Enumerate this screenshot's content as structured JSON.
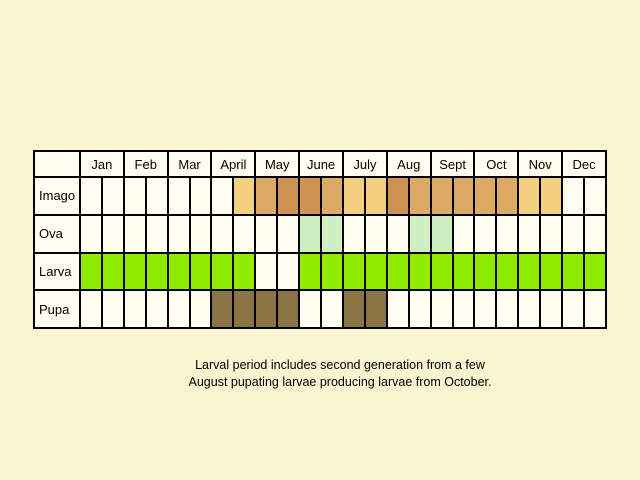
{
  "months": [
    "Jan",
    "Feb",
    "Mar",
    "April",
    "May",
    "June",
    "July",
    "Aug",
    "Sept",
    "Oct",
    "Nov",
    "Dec"
  ],
  "colors": {
    "empty": "#fffef0",
    "imago_light": "#f4cf80",
    "imago_mid": "#dcaa62",
    "imago_dark": "#cc9450",
    "ova": "#cfeec1",
    "larva": "#8fec00",
    "pupa": "#8b7444"
  },
  "rows": [
    {
      "label": "Imago",
      "cells": [
        "empty",
        "empty",
        "empty",
        "empty",
        "empty",
        "empty",
        "empty",
        "imago_light",
        "imago_mid",
        "imago_dark",
        "imago_dark",
        "imago_mid",
        "imago_light",
        "imago_light",
        "imago_dark",
        "imago_mid",
        "imago_mid",
        "imago_mid",
        "imago_mid",
        "imago_mid",
        "imago_light",
        "imago_light",
        "empty",
        "empty"
      ]
    },
    {
      "label": "Ova",
      "cells": [
        "empty",
        "empty",
        "empty",
        "empty",
        "empty",
        "empty",
        "empty",
        "empty",
        "empty",
        "empty",
        "ova",
        "ova",
        "empty",
        "empty",
        "empty",
        "ova",
        "ova",
        "empty",
        "empty",
        "empty",
        "empty",
        "empty",
        "empty",
        "empty"
      ]
    },
    {
      "label": "Larva",
      "cells": [
        "larva",
        "larva",
        "larva",
        "larva",
        "larva",
        "larva",
        "larva",
        "larva",
        "empty",
        "empty",
        "larva",
        "larva",
        "larva",
        "larva",
        "larva",
        "larva",
        "larva",
        "larva",
        "larva",
        "larva",
        "larva",
        "larva",
        "larva",
        "larva"
      ]
    },
    {
      "label": "Pupa",
      "cells": [
        "empty",
        "empty",
        "empty",
        "empty",
        "empty",
        "empty",
        "pupa",
        "pupa",
        "pupa",
        "pupa",
        "empty",
        "empty",
        "pupa",
        "pupa",
        "empty",
        "empty",
        "empty",
        "empty",
        "empty",
        "empty",
        "empty",
        "empty",
        "empty",
        "empty"
      ]
    }
  ],
  "caption": {
    "line1": "Larval period includes second generation from a few",
    "line2": "August pupating larvae producing larvae from October."
  }
}
